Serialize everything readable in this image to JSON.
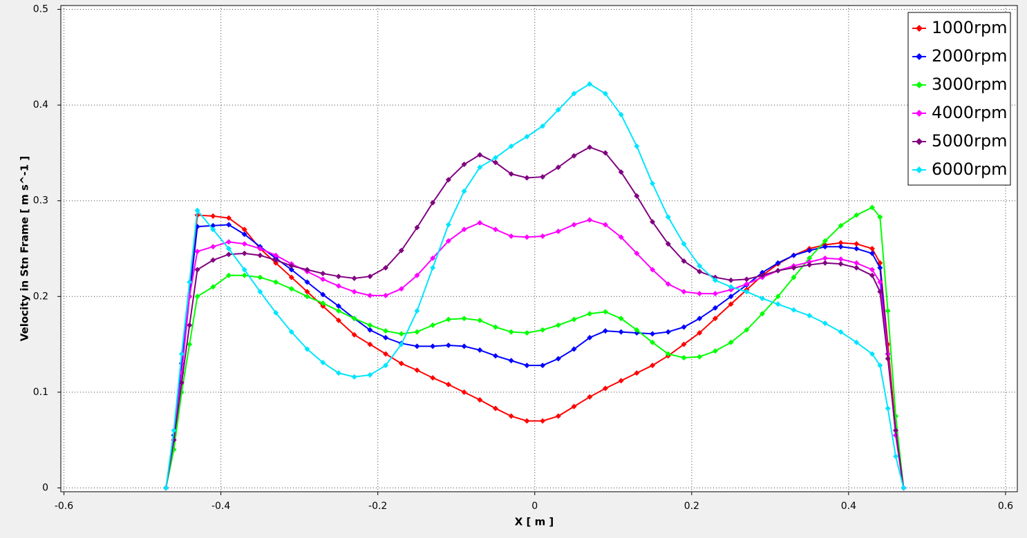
{
  "chart_data": {
    "type": "line",
    "x_label": "X [ m ]",
    "y_label": "Velocity in Stn Frame [ m s^-1 ]",
    "xlim": [
      -0.604,
      0.615
    ],
    "ylim": [
      -0.004,
      0.504
    ],
    "xticks": [
      -0.6,
      -0.4,
      -0.2,
      0,
      0.2,
      0.4,
      0.6
    ],
    "yticks": [
      0,
      0.1,
      0.2,
      0.3,
      0.4,
      0.5
    ],
    "grid": true,
    "legend": "upper right",
    "x": [
      -0.47,
      -0.46,
      -0.45,
      -0.44,
      -0.43,
      -0.41,
      -0.39,
      -0.37,
      -0.35,
      -0.33,
      -0.31,
      -0.29,
      -0.27,
      -0.25,
      -0.23,
      -0.21,
      -0.19,
      -0.17,
      -0.15,
      -0.13,
      -0.11,
      -0.09,
      -0.07,
      -0.05,
      -0.03,
      -0.01,
      0.01,
      0.03,
      0.05,
      0.07,
      0.09,
      0.11,
      0.13,
      0.15,
      0.17,
      0.19,
      0.21,
      0.23,
      0.25,
      0.27,
      0.29,
      0.31,
      0.33,
      0.35,
      0.37,
      0.39,
      0.41,
      0.43,
      0.44,
      0.45,
      0.46,
      0.47
    ],
    "series": [
      {
        "name": "1000rpm",
        "color": "#ff0000",
        "values": [
          0,
          0.05,
          0.12,
          0.2,
          0.285,
          0.284,
          0.282,
          0.27,
          0.25,
          0.235,
          0.22,
          0.205,
          0.19,
          0.175,
          0.16,
          0.15,
          0.14,
          0.13,
          0.123,
          0.115,
          0.108,
          0.1,
          0.092,
          0.083,
          0.075,
          0.07,
          0.07,
          0.075,
          0.085,
          0.095,
          0.104,
          0.112,
          0.12,
          0.128,
          0.138,
          0.15,
          0.162,
          0.177,
          0.192,
          0.207,
          0.222,
          0.234,
          0.243,
          0.25,
          0.254,
          0.256,
          0.255,
          0.25,
          0.235,
          0.15,
          0.06,
          0
        ]
      },
      {
        "name": "2000rpm",
        "color": "#0000ff",
        "values": [
          0,
          0.055,
          0.13,
          0.2,
          0.273,
          0.274,
          0.275,
          0.265,
          0.252,
          0.24,
          0.228,
          0.215,
          0.202,
          0.19,
          0.177,
          0.165,
          0.157,
          0.151,
          0.148,
          0.148,
          0.149,
          0.148,
          0.144,
          0.138,
          0.133,
          0.128,
          0.128,
          0.135,
          0.145,
          0.157,
          0.164,
          0.163,
          0.162,
          0.161,
          0.163,
          0.168,
          0.177,
          0.188,
          0.2,
          0.212,
          0.225,
          0.235,
          0.243,
          0.248,
          0.252,
          0.252,
          0.25,
          0.245,
          0.23,
          0.14,
          0.055,
          0
        ]
      },
      {
        "name": "3000rpm",
        "color": "#00ff00",
        "values": [
          0,
          0.04,
          0.1,
          0.15,
          0.2,
          0.21,
          0.222,
          0.222,
          0.22,
          0.215,
          0.208,
          0.2,
          0.193,
          0.185,
          0.177,
          0.17,
          0.164,
          0.161,
          0.163,
          0.17,
          0.176,
          0.177,
          0.175,
          0.168,
          0.163,
          0.162,
          0.165,
          0.17,
          0.176,
          0.182,
          0.184,
          0.177,
          0.165,
          0.152,
          0.14,
          0.136,
          0.137,
          0.143,
          0.152,
          0.165,
          0.182,
          0.2,
          0.22,
          0.24,
          0.258,
          0.274,
          0.285,
          0.293,
          0.283,
          0.185,
          0.075,
          0
        ]
      },
      {
        "name": "4000rpm",
        "color": "#ff00ff",
        "values": [
          0,
          0.05,
          0.12,
          0.2,
          0.247,
          0.252,
          0.257,
          0.255,
          0.25,
          0.243,
          0.234,
          0.226,
          0.218,
          0.211,
          0.205,
          0.201,
          0.201,
          0.208,
          0.222,
          0.24,
          0.258,
          0.27,
          0.277,
          0.27,
          0.263,
          0.262,
          0.263,
          0.268,
          0.275,
          0.28,
          0.275,
          0.262,
          0.245,
          0.228,
          0.213,
          0.205,
          0.203,
          0.203,
          0.207,
          0.213,
          0.22,
          0.227,
          0.232,
          0.236,
          0.24,
          0.239,
          0.235,
          0.228,
          0.215,
          0.14,
          0.055,
          0
        ]
      },
      {
        "name": "5000rpm",
        "color": "#800080",
        "values": [
          0,
          0.05,
          0.11,
          0.17,
          0.228,
          0.238,
          0.244,
          0.245,
          0.243,
          0.238,
          0.232,
          0.228,
          0.224,
          0.221,
          0.219,
          0.221,
          0.23,
          0.248,
          0.272,
          0.298,
          0.322,
          0.338,
          0.348,
          0.34,
          0.328,
          0.324,
          0.325,
          0.335,
          0.347,
          0.356,
          0.35,
          0.33,
          0.305,
          0.278,
          0.255,
          0.237,
          0.226,
          0.22,
          0.217,
          0.218,
          0.222,
          0.227,
          0.23,
          0.233,
          0.235,
          0.234,
          0.23,
          0.222,
          0.205,
          0.135,
          0.06,
          0
        ]
      },
      {
        "name": "6000rpm",
        "color": "#00e5ff",
        "values": [
          0,
          0.06,
          0.14,
          0.215,
          0.29,
          0.27,
          0.25,
          0.228,
          0.205,
          0.183,
          0.163,
          0.145,
          0.131,
          0.12,
          0.116,
          0.118,
          0.128,
          0.15,
          0.185,
          0.23,
          0.275,
          0.31,
          0.335,
          0.345,
          0.357,
          0.367,
          0.378,
          0.395,
          0.412,
          0.422,
          0.412,
          0.39,
          0.357,
          0.318,
          0.283,
          0.255,
          0.232,
          0.217,
          0.21,
          0.205,
          0.198,
          0.192,
          0.186,
          0.18,
          0.172,
          0.163,
          0.152,
          0.14,
          0.128,
          0.083,
          0.033,
          0
        ]
      }
    ]
  }
}
